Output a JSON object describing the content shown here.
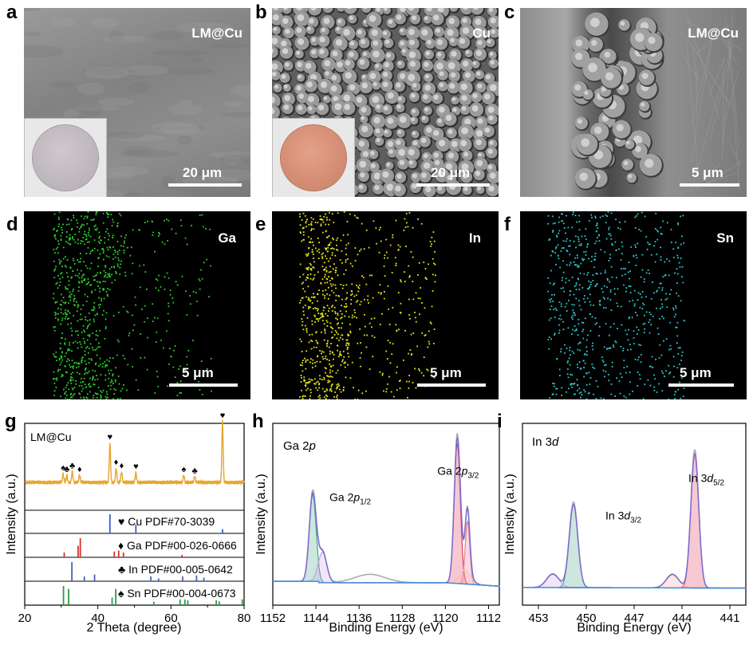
{
  "panels_sem": [
    {
      "id": "a",
      "label": "a",
      "title": "LM@Cu",
      "scalebar": "20 μm",
      "inset": true,
      "inset_color": "#bdb6bc",
      "bg": "#8a8a8a"
    },
    {
      "id": "b",
      "label": "b",
      "title": "Cu",
      "scalebar": "20 μm",
      "inset": true,
      "inset_color": "#d58f78",
      "bg": "#6c6c6c"
    },
    {
      "id": "c",
      "label": "c",
      "title": "LM@Cu",
      "scalebar": "5 μm",
      "inset": false,
      "bg": "#7f7f7f"
    }
  ],
  "panels_eds": [
    {
      "id": "d",
      "label": "d",
      "title": "Ga",
      "scalebar": "5 μm",
      "color": "#2fcf2f"
    },
    {
      "id": "e",
      "label": "e",
      "title": "In",
      "scalebar": "5 μm",
      "color": "#e5e51f"
    },
    {
      "id": "f",
      "label": "f",
      "title": "Sn",
      "scalebar": "5 μm",
      "color": "#2ec9cf"
    }
  ],
  "chart_data": [
    {
      "id": "g",
      "type": "line",
      "label": "g",
      "annotation": "LM@Cu",
      "xlabel": "2 Theta (degree)",
      "ylabel": "Intensity (a.u.)",
      "xlim": [
        20,
        80
      ],
      "xticks": [
        "20",
        "40",
        "60",
        "80"
      ],
      "minor_xticks": [
        "30",
        "50",
        "70"
      ],
      "line_color": "#e5a62d",
      "peaks": [
        {
          "x": 30.5,
          "h": 0.12,
          "marker": "♠"
        },
        {
          "x": 31.5,
          "h": 0.1,
          "marker": "♣"
        },
        {
          "x": 33.0,
          "h": 0.15,
          "marker": "♣"
        },
        {
          "x": 35.0,
          "h": 0.1,
          "marker": "♦"
        },
        {
          "x": 43.3,
          "h": 0.55,
          "marker": "♥"
        },
        {
          "x": 45.0,
          "h": 0.2,
          "marker": "♦"
        },
        {
          "x": 46.5,
          "h": 0.15,
          "marker": "♦"
        },
        {
          "x": 50.4,
          "h": 0.14,
          "marker": "♥"
        },
        {
          "x": 63.5,
          "h": 0.1,
          "marker": "♠"
        },
        {
          "x": 66.5,
          "h": 0.08,
          "marker": "♣"
        },
        {
          "x": 74.1,
          "h": 0.85,
          "marker": "♥"
        }
      ],
      "references": [
        {
          "symbol": "♥",
          "name": "Cu",
          "pdf": "PDF#70-3039",
          "color": "#3a5fcd",
          "lines": [
            {
              "x": 43.3,
              "h": 1.0
            },
            {
              "x": 50.4,
              "h": 0.45
            },
            {
              "x": 74.1,
              "h": 0.22
            }
          ]
        },
        {
          "symbol": "♦",
          "name": "Ga",
          "pdf": "PDF#00-026-0666",
          "color": "#d83030",
          "lines": [
            {
              "x": 30.8,
              "h": 0.25
            },
            {
              "x": 34.6,
              "h": 0.6
            },
            {
              "x": 35.2,
              "h": 1.0
            },
            {
              "x": 44.5,
              "h": 0.3
            },
            {
              "x": 45.7,
              "h": 0.35
            },
            {
              "x": 47.0,
              "h": 0.25
            },
            {
              "x": 63.0,
              "h": 0.12
            }
          ]
        },
        {
          "symbol": "♣",
          "name": "In",
          "pdf": "PDF#00-005-0642",
          "color": "#4a62b8",
          "lines": [
            {
              "x": 32.9,
              "h": 1.0
            },
            {
              "x": 36.3,
              "h": 0.25
            },
            {
              "x": 39.1,
              "h": 0.35
            },
            {
              "x": 54.5,
              "h": 0.25
            },
            {
              "x": 56.6,
              "h": 0.15
            },
            {
              "x": 63.2,
              "h": 0.25
            },
            {
              "x": 67.0,
              "h": 0.3
            },
            {
              "x": 69.0,
              "h": 0.18
            }
          ]
        },
        {
          "symbol": "♠",
          "name": "Sn",
          "pdf": "PDF#00-004-0673",
          "color": "#2f9a4a",
          "lines": [
            {
              "x": 30.6,
              "h": 1.0
            },
            {
              "x": 32.0,
              "h": 0.85
            },
            {
              "x": 43.9,
              "h": 0.4
            },
            {
              "x": 44.9,
              "h": 0.85
            },
            {
              "x": 55.3,
              "h": 0.18
            },
            {
              "x": 62.5,
              "h": 0.3
            },
            {
              "x": 63.8,
              "h": 0.3
            },
            {
              "x": 64.6,
              "h": 0.25
            },
            {
              "x": 72.4,
              "h": 0.25
            },
            {
              "x": 73.2,
              "h": 0.2
            },
            {
              "x": 79.5,
              "h": 0.3
            }
          ]
        }
      ]
    },
    {
      "id": "h",
      "type": "line",
      "label": "h",
      "annotation_main": "Ga 2",
      "annotation_orb": "p",
      "xlabel": "Binding Energy (eV)",
      "ylabel": "Intensity (a.u.)",
      "xlim": [
        1152,
        1110
      ],
      "xticks": [
        "1152",
        "1144",
        "1136",
        "1128",
        "1120",
        "1112"
      ],
      "peak_labels": [
        {
          "text": "Ga 2",
          "orb": "p",
          "sub": "1/2",
          "x": 1141.5,
          "y": 0.62
        },
        {
          "text": "Ga 2",
          "orb": "p",
          "sub": "3/2",
          "x": 1121.5,
          "y": 0.81
        }
      ],
      "components": [
        {
          "center": 1144.6,
          "height": 0.62,
          "width": 0.9,
          "fill": "#4aa58a"
        },
        {
          "center": 1142.8,
          "height": 0.22,
          "width": 1.1,
          "fill": "#c9a0e8"
        },
        {
          "center": 1117.8,
          "height": 1.0,
          "width": 0.8,
          "fill": "#e23b58"
        },
        {
          "center": 1115.9,
          "height": 0.45,
          "width": 0.6,
          "fill": "#ea7d8f"
        },
        {
          "center": 1116.4,
          "height": 0.1,
          "width": 1.5,
          "fill": "#f3c0c0"
        }
      ],
      "envelope_color": "#7b6ad6",
      "raw_color": "#aaaaaa",
      "background_color": "#3a8fd6"
    },
    {
      "id": "i",
      "type": "line",
      "label": "i",
      "annotation_main": "In 3",
      "annotation_orb": "d",
      "xlabel": "Binding Energy (eV)",
      "ylabel": "Intensity (a.u.)",
      "xlim": [
        454,
        440
      ],
      "xticks": [
        "453",
        "450",
        "447",
        "444",
        "441"
      ],
      "peak_labels": [
        {
          "text": "In 3",
          "orb": "d",
          "sub": "3/2",
          "x": 448.8,
          "y": 0.52
        },
        {
          "text": "In 3",
          "orb": "d",
          "sub": "5/2",
          "x": 443.6,
          "y": 0.8
        }
      ],
      "components": [
        {
          "center": 450.8,
          "height": 0.62,
          "width": 0.38,
          "fill": "#4aa58a"
        },
        {
          "center": 452.1,
          "height": 0.1,
          "width": 0.55,
          "fill": "#c9a0e8"
        },
        {
          "center": 443.2,
          "height": 1.0,
          "width": 0.35,
          "fill": "#e23b58"
        },
        {
          "center": 444.6,
          "height": 0.1,
          "width": 0.55,
          "fill": "#f3a6a6"
        }
      ],
      "envelope_color": "#7b6ad6",
      "raw_color": "#aaaaaa",
      "background_color": "#3a8fd6"
    }
  ]
}
